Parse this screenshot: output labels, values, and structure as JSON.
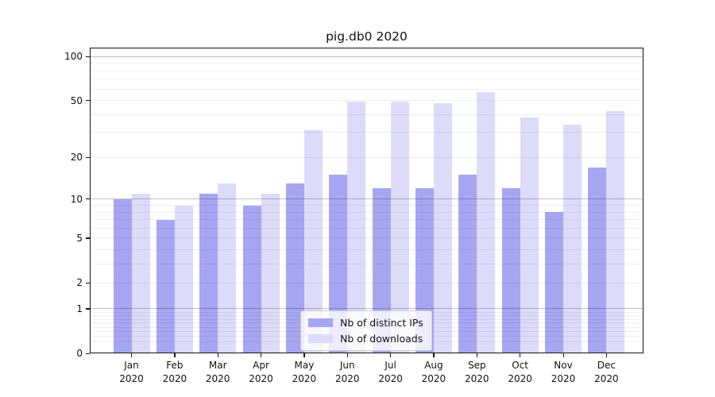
{
  "title": "pig.db0 2020",
  "chart_data": {
    "type": "bar",
    "title": "pig.db0 2020",
    "categories": [
      "Jan 2020",
      "Feb 2020",
      "Mar 2020",
      "Apr 2020",
      "May 2020",
      "Jun 2020",
      "Jul 2020",
      "Aug 2020",
      "Sep 2020",
      "Oct 2020",
      "Nov 2020",
      "Dec 2020"
    ],
    "series": [
      {
        "name": "Nb of distinct IPs",
        "color": "#a6a6f2",
        "values": [
          10,
          7,
          11,
          9,
          13,
          15,
          12,
          12,
          15,
          12,
          8,
          17
        ]
      },
      {
        "name": "Nb of downloads",
        "color": "#dcdcfa",
        "values": [
          11,
          9,
          13,
          11,
          31,
          49,
          49,
          48,
          57,
          38,
          34,
          42
        ]
      }
    ],
    "yscale": "log1p",
    "ylim": [
      0,
      115
    ],
    "ytick_values": [
      0,
      1,
      2,
      5,
      10,
      20,
      50,
      100
    ],
    "ytick_labels": [
      "0",
      "1",
      "2",
      "5",
      "10",
      "20",
      "50",
      "100"
    ],
    "grid": "on",
    "legend_position": "lower center",
    "xlabel": "",
    "ylabel": ""
  }
}
